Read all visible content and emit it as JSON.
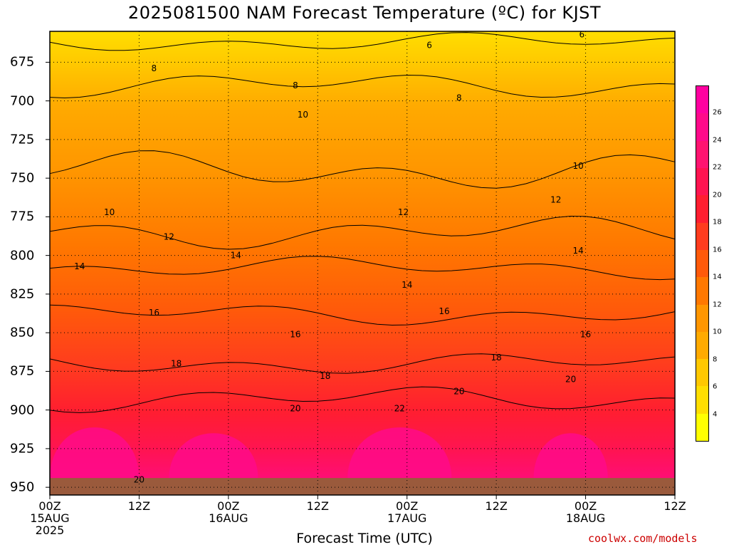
{
  "title": "2025081500 NAM Forecast Temperature (ºC) for KJST",
  "credit": "coolwx.com/models",
  "chart_data": {
    "type": "heatmap",
    "title": "2025081500 NAM Forecast Temperature (ºC) for KJST",
    "xlabel": "Forecast Time (UTC)",
    "ylabel": "",
    "y_axis_inverted": true,
    "ylim": [
      955,
      650
    ],
    "y_ticks": [
      "675",
      "700",
      "725",
      "750",
      "775",
      "800",
      "825",
      "850",
      "875",
      "900",
      "925",
      "950"
    ],
    "x_ticks": [
      {
        "hour": 0,
        "lines": [
          "00Z",
          "15AUG",
          "2025"
        ]
      },
      {
        "hour": 12,
        "lines": [
          "12Z"
        ]
      },
      {
        "hour": 24,
        "lines": [
          "00Z",
          "16AUG"
        ]
      },
      {
        "hour": 36,
        "lines": [
          "12Z"
        ]
      },
      {
        "hour": 48,
        "lines": [
          "00Z",
          "17AUG"
        ]
      },
      {
        "hour": 60,
        "lines": [
          "12Z"
        ]
      },
      {
        "hour": 72,
        "lines": [
          "00Z",
          "18AUG"
        ]
      },
      {
        "hour": 84,
        "lines": [
          "12Z"
        ]
      }
    ],
    "xlim_hours": [
      0,
      84
    ],
    "grid": true,
    "colorbar": {
      "levels": [
        "4",
        "6",
        "8",
        "10",
        "12",
        "14",
        "16",
        "18",
        "20",
        "22",
        "24",
        "26"
      ],
      "colors": [
        "#ff00a0",
        "#ff0a8a",
        "#ff1470",
        "#ff1450",
        "#ff1e30",
        "#ff3c1e",
        "#ff5a0a",
        "#ff7800",
        "#ff9600",
        "#ffaa00",
        "#ffc800",
        "#ffde00",
        "#ffff00"
      ]
    },
    "isotherm_labels": [
      {
        "text": "6",
        "hour": 51,
        "p": 664
      },
      {
        "text": "6",
        "hour": 71.5,
        "p": 657
      },
      {
        "text": "8",
        "hour": 14,
        "p": 679
      },
      {
        "text": "8",
        "hour": 33,
        "p": 690
      },
      {
        "text": "8",
        "hour": 55,
        "p": 698
      },
      {
        "text": "10",
        "hour": 34,
        "p": 709
      },
      {
        "text": "10",
        "hour": 71,
        "p": 742
      },
      {
        "text": "10",
        "hour": 8,
        "p": 772
      },
      {
        "text": "12",
        "hour": 47.5,
        "p": 772
      },
      {
        "text": "12",
        "hour": 68,
        "p": 764
      },
      {
        "text": "12",
        "hour": 16,
        "p": 788
      },
      {
        "text": "14",
        "hour": 4,
        "p": 807
      },
      {
        "text": "14",
        "hour": 25,
        "p": 800
      },
      {
        "text": "14",
        "hour": 48,
        "p": 819
      },
      {
        "text": "14",
        "hour": 71,
        "p": 797
      },
      {
        "text": "16",
        "hour": 14,
        "p": 837
      },
      {
        "text": "16",
        "hour": 33,
        "p": 851
      },
      {
        "text": "16",
        "hour": 53,
        "p": 836
      },
      {
        "text": "16",
        "hour": 72,
        "p": 851
      },
      {
        "text": "18",
        "hour": 17,
        "p": 870
      },
      {
        "text": "18",
        "hour": 37,
        "p": 878
      },
      {
        "text": "18",
        "hour": 60,
        "p": 866
      },
      {
        "text": "20",
        "hour": 55,
        "p": 888
      },
      {
        "text": "20",
        "hour": 70,
        "p": 880
      },
      {
        "text": "20",
        "hour": 33,
        "p": 899
      },
      {
        "text": "20",
        "hour": 12,
        "p": 945
      },
      {
        "text": "22",
        "hour": 47,
        "p": 899
      }
    ]
  }
}
